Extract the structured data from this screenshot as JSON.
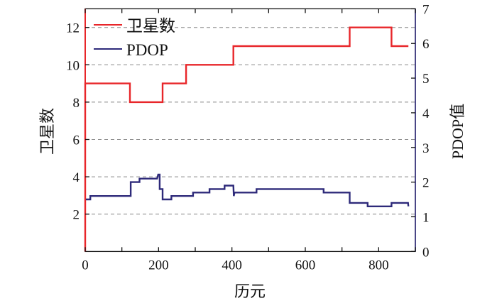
{
  "chart_data": {
    "type": "line",
    "title": "",
    "xlabel": "历元",
    "ylabel": "卫星数",
    "ylabel_right": "PDOP值",
    "xlim": [
      0,
      900
    ],
    "ylim": [
      0,
      13
    ],
    "ylim_right": [
      0,
      7
    ],
    "x_ticks": [
      "0",
      "200",
      "400",
      "600",
      "800"
    ],
    "x_tick_values": [
      0,
      200,
      400,
      600,
      800
    ],
    "y_ticks": [
      "2",
      "4",
      "6",
      "8",
      "10",
      "12"
    ],
    "y_tick_values": [
      2,
      4,
      6,
      8,
      10,
      12
    ],
    "y_ticks_right": [
      "0",
      "1",
      "2",
      "3",
      "4",
      "5",
      "6",
      "7"
    ],
    "y_tick_values_right": [
      0,
      1,
      2,
      3,
      4,
      5,
      6,
      7
    ],
    "grid": "horizontal dashed at left-axis major ticks",
    "legend": {
      "position": "top-left",
      "entries": [
        "卫星数",
        "PDOP"
      ]
    },
    "series": [
      {
        "name": "卫星数",
        "axis": "left",
        "color": "#e8262a",
        "step": true,
        "x": [
          0,
          0,
          122,
          122,
          211,
          211,
          275,
          275,
          404,
          404,
          721,
          721,
          835,
          835,
          881
        ],
        "y": [
          0,
          9,
          9,
          8,
          8,
          9,
          9,
          10,
          10,
          11,
          11,
          12,
          12,
          11,
          11
        ]
      },
      {
        "name": "PDOP",
        "axis": "right",
        "color": "#2e2a7a",
        "step": true,
        "x": [
          0,
          14,
          14,
          124,
          124,
          148,
          148,
          196,
          199,
          201,
          203,
          203,
          211,
          211,
          235,
          235,
          294,
          294,
          339,
          339,
          380,
          380,
          404,
          405,
          407,
          467,
          467,
          650,
          650,
          721,
          721,
          770,
          770,
          835,
          835,
          880,
          881
        ],
        "y": [
          1.5,
          1.5,
          1.6,
          1.6,
          2.0,
          2.0,
          2.1,
          2.1,
          2.22,
          2.22,
          2.22,
          1.8,
          1.8,
          1.5,
          1.5,
          1.6,
          1.6,
          1.7,
          1.7,
          1.8,
          1.8,
          1.9,
          1.9,
          1.6,
          1.7,
          1.7,
          1.8,
          1.8,
          1.7,
          1.7,
          1.4,
          1.4,
          1.3,
          1.3,
          1.4,
          1.4,
          1.3
        ]
      }
    ]
  }
}
